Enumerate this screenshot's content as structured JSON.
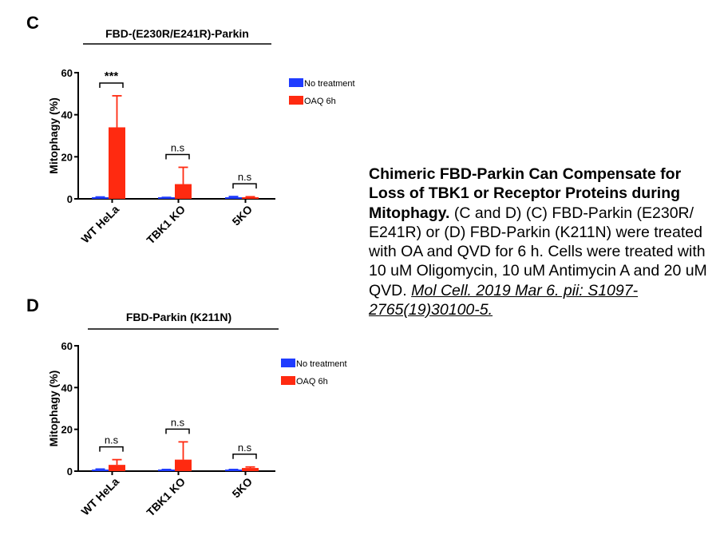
{
  "chart_data": [
    {
      "panel": "C",
      "type": "bar",
      "title": "FBD-(E230R/E241R)-Parkin",
      "ylabel": "Mitophagy (%)",
      "ylim": [
        0,
        60
      ],
      "yticks": [
        0,
        20,
        40,
        60
      ],
      "categories": [
        "WT HeLa",
        "TBK1 KO",
        "5KO"
      ],
      "series": [
        {
          "name": "No treatment",
          "color": "#1f3cff",
          "values": [
            0.5,
            0.4,
            0.6
          ],
          "errors": [
            0.4,
            0.3,
            0.5
          ]
        },
        {
          "name": "OAQ 6h",
          "color": "#ff2a10",
          "values": [
            34,
            7,
            0.6
          ],
          "errors": [
            15,
            8,
            0.4
          ]
        }
      ],
      "significance": [
        "***",
        "n.s",
        "n.s"
      ],
      "legend_position": "top-right"
    },
    {
      "panel": "D",
      "type": "bar",
      "title": "FBD-Parkin (K211N)",
      "ylabel": "Mitophagy (%)",
      "ylim": [
        0,
        60
      ],
      "yticks": [
        0,
        20,
        40,
        60
      ],
      "categories": [
        "WT HeLa",
        "TBK1 KO",
        "5KO"
      ],
      "series": [
        {
          "name": "No treatment",
          "color": "#1f3cff",
          "values": [
            0.6,
            0.5,
            0.5
          ],
          "errors": [
            0.4,
            0.3,
            0.3
          ]
        },
        {
          "name": "OAQ 6h",
          "color": "#ff2a10",
          "values": [
            3,
            5.5,
            1.5
          ],
          "errors": [
            2.5,
            8.5,
            0.5
          ]
        }
      ],
      "significance": [
        "n.s",
        "n.s",
        "n.s"
      ],
      "legend_position": "top-right"
    }
  ],
  "caption": {
    "heading": "Chimeric FBD-Parkin Can Compensate for Loss of TBK1 or Receptor Proteins during Mitophagy.",
    "body": "(C and D) (C) FBD-Parkin (E230R/ E241R) or (D) FBD-Parkin (K211N) were treated with OA and QVD for 6 h. Cells were treated with 10 uM Oligomycin, 10 uM Antimycin A and 20 uM QVD.",
    "citation": "Mol Cell. 2019 Mar 6. pii: S1097-2765(19)30100-5."
  }
}
